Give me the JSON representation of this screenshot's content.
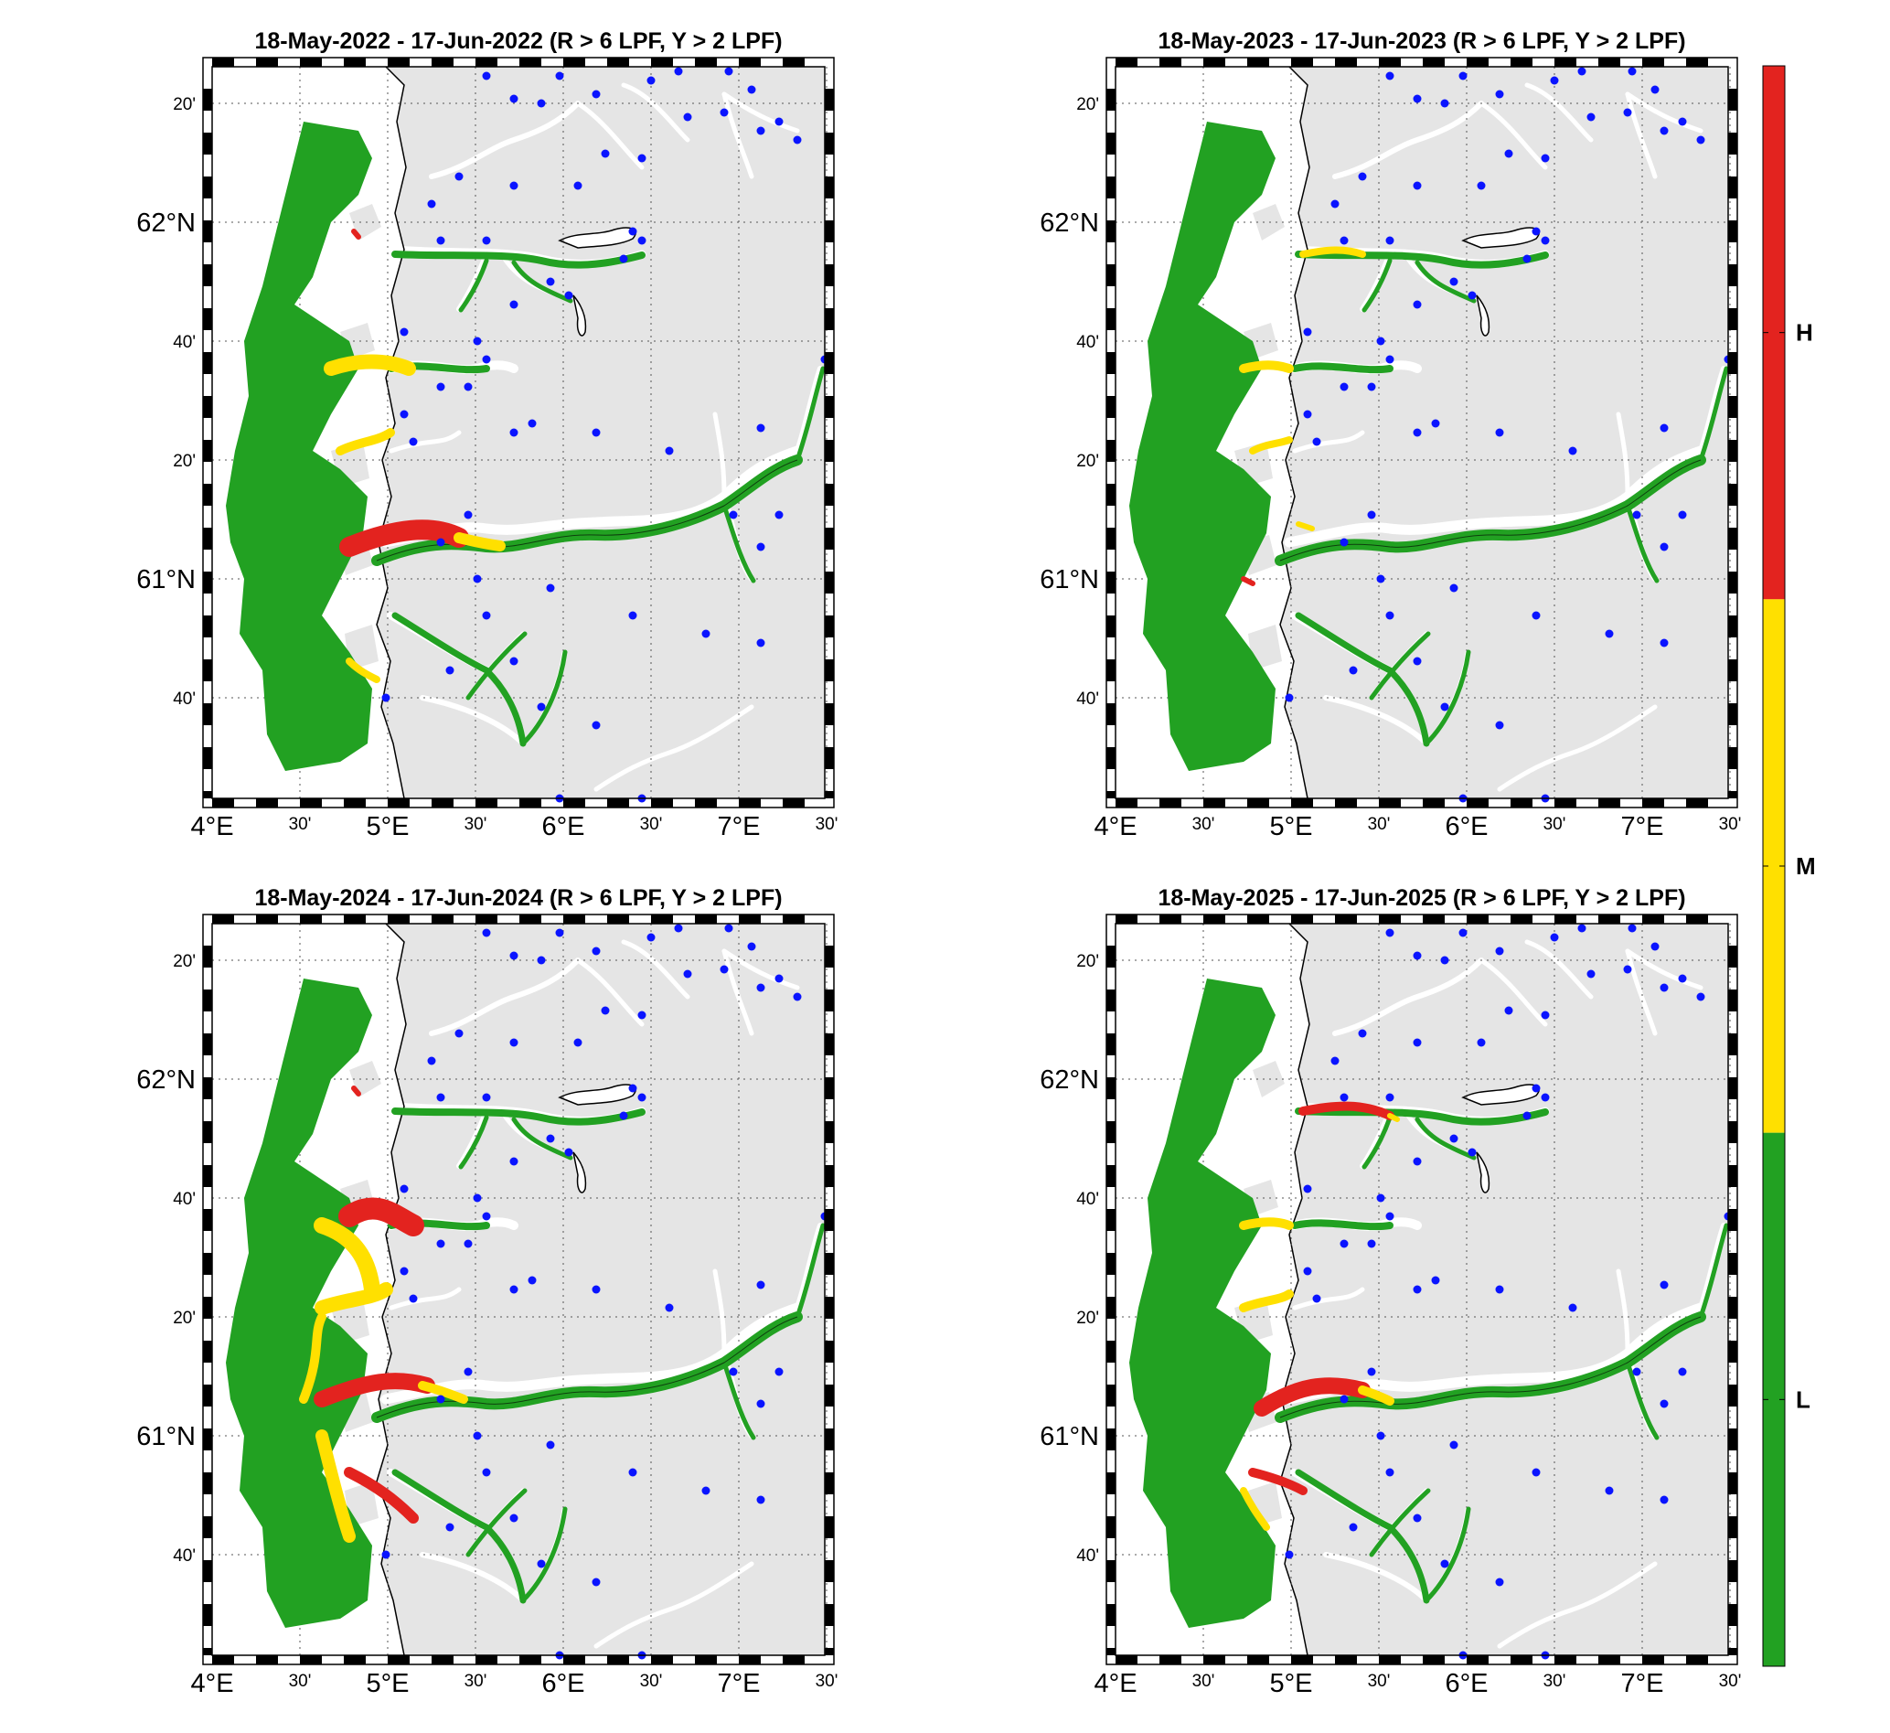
{
  "panels": [
    {
      "title": "18-May-2022  - 17-Jun-2022  (R > 6 LPF, Y > 2 LPF)",
      "scenario": "2022"
    },
    {
      "title": "18-May-2023  - 17-Jun-2023  (R > 6 LPF, Y > 2 LPF)",
      "scenario": "2023"
    },
    {
      "title": "18-May-2024  - 17-Jun-2024  (R > 6 LPF, Y > 2 LPF)",
      "scenario": "2024"
    },
    {
      "title": "18-May-2025  - 17-Jun-2025  (R > 6 LPF, Y > 2 LPF)",
      "scenario": "2025"
    }
  ],
  "axis": {
    "lon_labels": [
      "4°E",
      "30'",
      "5°E",
      "30'",
      "6°E",
      "30'",
      "7°E",
      "30'"
    ],
    "lat_labels": [
      "40'",
      "61°N",
      "20'",
      "40'",
      "62°N",
      "20'"
    ]
  },
  "colorbar": {
    "levels": [
      {
        "label": "H",
        "color": "#e3231f"
      },
      {
        "label": "M",
        "color": "#ffe000"
      },
      {
        "label": "L",
        "color": "#22a122"
      }
    ]
  },
  "colors": {
    "land": "#e5e5e5",
    "sea": "#ffffff",
    "green": "#22a122",
    "yellow": "#ffe000",
    "red": "#e3231f",
    "station": "#0a14ff",
    "frame": "#000000",
    "grid": "#555555"
  }
}
